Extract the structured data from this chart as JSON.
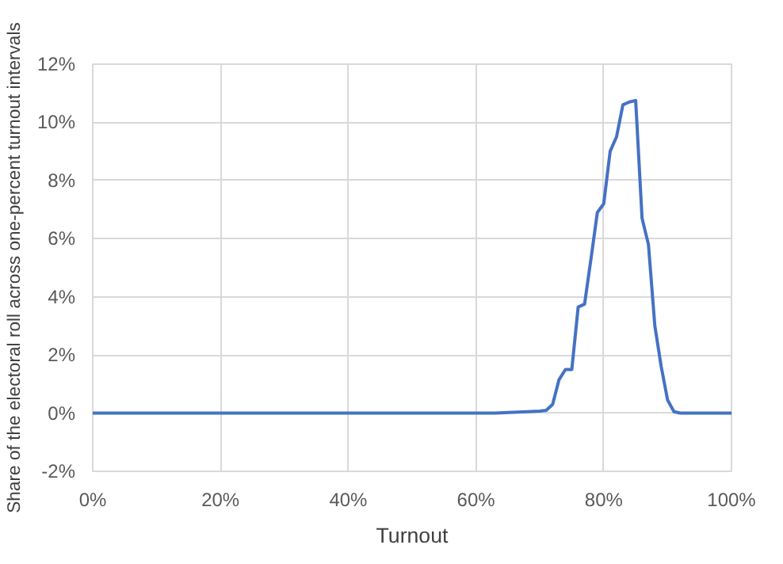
{
  "chart_data": {
    "type": "line",
    "xlabel": "Turnout",
    "ylabel": "Share of the electoral roll across one-percent turnout intervals",
    "series": [
      {
        "color": "#4472c4",
        "x": [
          0,
          20,
          40,
          60,
          63,
          65,
          68,
          70,
          71,
          72,
          73,
          74,
          75,
          76,
          77,
          78,
          79,
          80,
          81,
          82,
          83,
          84,
          85,
          86,
          87,
          88,
          89,
          90,
          91,
          92,
          95,
          100
        ],
        "values": [
          0,
          0,
          0,
          0,
          0,
          0.02,
          0.05,
          0.07,
          0.1,
          0.3,
          1.15,
          1.5,
          1.5,
          3.65,
          3.75,
          5.3,
          6.9,
          7.2,
          9.0,
          9.5,
          10.6,
          10.7,
          10.75,
          6.7,
          5.8,
          3.0,
          1.6,
          0.45,
          0.05,
          0,
          0,
          0
        ]
      }
    ],
    "xlim": [
      0,
      100
    ],
    "ylim": [
      -2,
      12
    ],
    "xticks": [
      {
        "value": 0,
        "label": "0%"
      },
      {
        "value": 20,
        "label": "20%"
      },
      {
        "value": 40,
        "label": "40%"
      },
      {
        "value": 60,
        "label": "60%"
      },
      {
        "value": 80,
        "label": "80%"
      },
      {
        "value": 100,
        "label": "100%"
      }
    ],
    "yticks": [
      {
        "value": -2,
        "label": "-2%"
      },
      {
        "value": 0,
        "label": "0%"
      },
      {
        "value": 2,
        "label": "2%"
      },
      {
        "value": 4,
        "label": "4%"
      },
      {
        "value": 6,
        "label": "6%"
      },
      {
        "value": 8,
        "label": "8%"
      },
      {
        "value": 10,
        "label": "10%"
      },
      {
        "value": 12,
        "label": "12%"
      }
    ],
    "grid": true,
    "marker": "none",
    "line_style": "solid"
  }
}
